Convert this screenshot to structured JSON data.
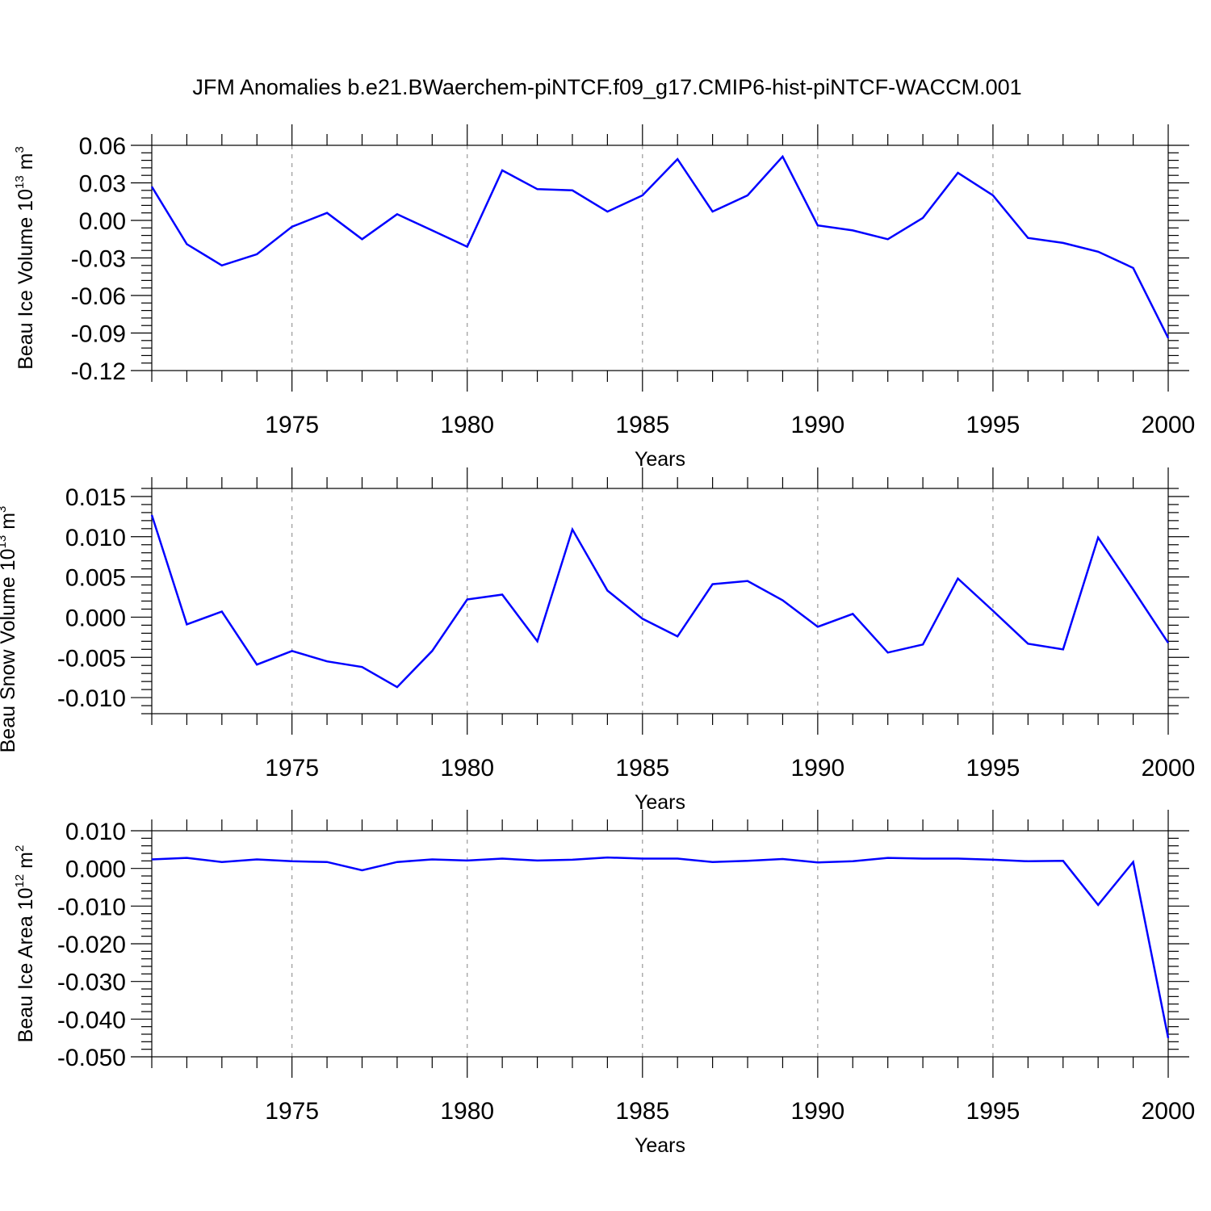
{
  "title": "JFM Anomalies b.e21.BWaerchem-piNTCF.f09_g17.CMIP6-hist-piNTCF-WACCM.001",
  "line_color": "#0000ff",
  "chart_data": [
    {
      "type": "line",
      "xlabel": "Years",
      "ylabel": "Beau Ice Volume 10",
      "ylabel_exp": "13",
      "ylabel_unit": " m",
      "ylabel_unit_exp": "3",
      "xlim": [
        1971,
        2000
      ],
      "ylim": [
        -0.12,
        0.06
      ],
      "yticks": [
        -0.12,
        -0.09,
        -0.06,
        -0.03,
        0.0,
        0.03,
        0.06
      ],
      "ytick_labels": [
        "-0.12",
        "-0.09",
        "-0.06",
        "-0.03",
        "0.00",
        "0.03",
        "0.06"
      ],
      "yminor": 0.006,
      "xticks": [
        1975,
        1980,
        1985,
        1990,
        1995,
        2000
      ],
      "xtick_labels": [
        "1975",
        "1980",
        "1985",
        "1990",
        "1995",
        "2000"
      ],
      "grid": "dashed vertical at major x ticks",
      "x": [
        1971,
        1972,
        1973,
        1974,
        1975,
        1976,
        1977,
        1978,
        1979,
        1980,
        1981,
        1982,
        1983,
        1984,
        1985,
        1986,
        1987,
        1988,
        1989,
        1990,
        1991,
        1992,
        1993,
        1994,
        1995,
        1996,
        1997,
        1998,
        1999,
        2000
      ],
      "values": [
        0.027,
        -0.019,
        -0.036,
        -0.027,
        -0.005,
        0.006,
        -0.015,
        0.005,
        -0.008,
        -0.021,
        0.04,
        0.025,
        0.024,
        0.007,
        0.02,
        0.049,
        0.007,
        0.02,
        0.051,
        -0.004,
        -0.008,
        -0.015,
        0.002,
        0.038,
        0.02,
        -0.014,
        -0.018,
        -0.025,
        -0.038,
        -0.094
      ]
    },
    {
      "type": "line",
      "xlabel": "Years",
      "ylabel": "Beau Snow Volume 10",
      "ylabel_exp": "13",
      "ylabel_unit": " m",
      "ylabel_unit_exp": "3",
      "xlim": [
        1971,
        2000
      ],
      "ylim": [
        -0.012,
        0.016
      ],
      "yticks": [
        -0.01,
        -0.005,
        0.0,
        0.005,
        0.01,
        0.015
      ],
      "ytick_labels": [
        "-0.010",
        "-0.005",
        "0.000",
        "0.005",
        "0.010",
        "0.015"
      ],
      "yminor": 0.001,
      "xticks": [
        1975,
        1980,
        1985,
        1990,
        1995,
        2000
      ],
      "xtick_labels": [
        "1975",
        "1980",
        "1985",
        "1990",
        "1995",
        "2000"
      ],
      "grid": "dashed vertical at major x ticks",
      "x": [
        1971,
        1972,
        1973,
        1974,
        1975,
        1976,
        1977,
        1978,
        1979,
        1980,
        1981,
        1982,
        1983,
        1984,
        1985,
        1986,
        1987,
        1988,
        1989,
        1990,
        1991,
        1992,
        1993,
        1994,
        1995,
        1996,
        1997,
        1998,
        1999,
        2000
      ],
      "values": [
        0.0127,
        -0.0009,
        0.0007,
        -0.0059,
        -0.0042,
        -0.0055,
        -0.0062,
        -0.0087,
        -0.0042,
        0.0022,
        0.0028,
        -0.003,
        0.0109,
        0.0033,
        -0.0002,
        -0.0024,
        0.0041,
        0.0045,
        0.0021,
        -0.0012,
        0.0004,
        -0.0044,
        -0.0034,
        0.0048,
        0.0008,
        -0.0033,
        -0.004,
        0.0099,
        0.0034,
        -0.0032
      ]
    },
    {
      "type": "line",
      "xlabel": "Years",
      "ylabel": "Beau Ice Area 10",
      "ylabel_exp": "12",
      "ylabel_unit": " m",
      "ylabel_unit_exp": "2",
      "xlim": [
        1971,
        2000
      ],
      "ylim": [
        -0.05,
        0.01
      ],
      "yticks": [
        -0.05,
        -0.04,
        -0.03,
        -0.02,
        -0.01,
        0.0,
        0.01
      ],
      "ytick_labels": [
        "-0.050",
        "-0.040",
        "-0.030",
        "-0.020",
        "-0.010",
        "0.000",
        "0.010"
      ],
      "yminor": 0.002,
      "xticks": [
        1975,
        1980,
        1985,
        1990,
        1995,
        2000
      ],
      "xtick_labels": [
        "1975",
        "1980",
        "1985",
        "1990",
        "1995",
        "2000"
      ],
      "grid": "dashed vertical at major x ticks",
      "x": [
        1971,
        1972,
        1973,
        1974,
        1975,
        1976,
        1977,
        1978,
        1979,
        1980,
        1981,
        1982,
        1983,
        1984,
        1985,
        1986,
        1987,
        1988,
        1989,
        1990,
        1991,
        1992,
        1993,
        1994,
        1995,
        1996,
        1997,
        1998,
        1999,
        2000
      ],
      "values": [
        0.0024,
        0.0028,
        0.0017,
        0.0024,
        0.0019,
        0.0017,
        -0.0005,
        0.0017,
        0.0024,
        0.0021,
        0.0026,
        0.0021,
        0.0023,
        0.0029,
        0.0026,
        0.0026,
        0.0017,
        0.002,
        0.0025,
        0.0016,
        0.0019,
        0.0028,
        0.0026,
        0.0026,
        0.0023,
        0.0019,
        0.002,
        -0.0097,
        0.0017,
        -0.045
      ]
    }
  ]
}
